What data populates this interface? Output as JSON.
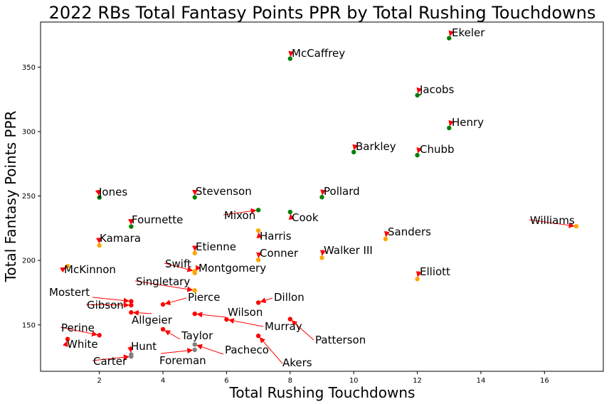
{
  "chart_data": {
    "type": "scatter",
    "title": "2022 RBs Total Fantasy Points PPR by Total Rushing Touchdowns",
    "xlabel": "Total Rushing Touchdowns",
    "ylabel": "Total Fantasy Points PPR",
    "xlim": [
      0.15,
      17.85
    ],
    "ylim": [
      114,
      385
    ],
    "xticks": [
      2,
      4,
      6,
      8,
      10,
      12,
      14,
      16
    ],
    "yticks": [
      150,
      200,
      250,
      300,
      350
    ],
    "grid": false,
    "colors": {
      "green": "#008000",
      "orange": "#ffa500",
      "red": "#ff0000",
      "gray": "#808080",
      "arrow": "#ff0000"
    },
    "points": [
      {
        "name": "Ekeler",
        "x": 13,
        "y": 372.5,
        "color": "green"
      },
      {
        "name": "McCaffrey",
        "x": 8,
        "y": 356.6,
        "color": "green"
      },
      {
        "name": "Jacobs",
        "x": 12,
        "y": 328.2,
        "color": "green"
      },
      {
        "name": "Henry",
        "x": 13,
        "y": 302.8,
        "color": "green"
      },
      {
        "name": "Barkley",
        "x": 10,
        "y": 284.1,
        "color": "green"
      },
      {
        "name": "Chubb",
        "x": 12,
        "y": 281.7,
        "color": "green"
      },
      {
        "name": "Jones",
        "x": 2,
        "y": 248.9,
        "color": "green"
      },
      {
        "name": "Stevenson",
        "x": 5,
        "y": 249.0,
        "color": "green"
      },
      {
        "name": "Pollard",
        "x": 9,
        "y": 249.1,
        "color": "green"
      },
      {
        "name": "Mixon",
        "x": 7,
        "y": 239.1,
        "color": "green"
      },
      {
        "name": "Cook",
        "x": 8,
        "y": 237.6,
        "color": "green"
      },
      {
        "name": "Fournette",
        "x": 3,
        "y": 226.3,
        "color": "green"
      },
      {
        "name": "Williams",
        "x": 17,
        "y": 226.5,
        "color": "orange"
      },
      {
        "name": "Harris",
        "x": 7,
        "y": 223.2,
        "color": "orange"
      },
      {
        "name": "Sanders",
        "x": 11,
        "y": 216.7,
        "color": "orange"
      },
      {
        "name": "Kamara",
        "x": 2,
        "y": 211.7,
        "color": "orange"
      },
      {
        "name": "Etienne",
        "x": 5,
        "y": 205.7,
        "color": "orange"
      },
      {
        "name": "Walker III",
        "x": 9,
        "y": 202.1,
        "color": "orange"
      },
      {
        "name": "Conner",
        "x": 7,
        "y": 200.4,
        "color": "orange"
      },
      {
        "name": "McKinnon",
        "x": 1,
        "y": 195.6,
        "color": "orange"
      },
      {
        "name": "Swift",
        "x": 5,
        "y": 191.6,
        "color": "orange"
      },
      {
        "name": "Montgomery",
        "x": 5,
        "y": 190.3,
        "color": "orange"
      },
      {
        "name": "Elliott",
        "x": 12,
        "y": 185.6,
        "color": "orange"
      },
      {
        "name": "Singletary",
        "x": 5,
        "y": 176.8,
        "color": "orange"
      },
      {
        "name": "Mostert",
        "x": 3,
        "y": 168.3,
        "color": "red"
      },
      {
        "name": "Dillon",
        "x": 7,
        "y": 167.3,
        "color": "red"
      },
      {
        "name": "Pierce",
        "x": 4,
        "y": 165.9,
        "color": "red"
      },
      {
        "name": "Gibson",
        "x": 3,
        "y": 165.3,
        "color": "red"
      },
      {
        "name": "Allgeier",
        "x": 3,
        "y": 159.7,
        "color": "red"
      },
      {
        "name": "Wilson",
        "x": 5,
        "y": 158.6,
        "color": "red"
      },
      {
        "name": "Patterson",
        "x": 8,
        "y": 154.5,
        "color": "red"
      },
      {
        "name": "Murray",
        "x": 6,
        "y": 154.2,
        "color": "red"
      },
      {
        "name": "Taylor",
        "x": 4,
        "y": 146.6,
        "color": "red"
      },
      {
        "name": "Perine",
        "x": 2,
        "y": 142.0,
        "color": "red"
      },
      {
        "name": "Akers",
        "x": 7,
        "y": 141.5,
        "color": "red"
      },
      {
        "name": "White",
        "x": 1,
        "y": 139.0,
        "color": "red"
      },
      {
        "name": "Pacheco",
        "x": 5,
        "y": 134.8,
        "color": "gray"
      },
      {
        "name": "Foreman",
        "x": 5,
        "y": 130.6,
        "color": "gray"
      },
      {
        "name": "Hunt",
        "x": 3,
        "y": 127.0,
        "color": "gray"
      },
      {
        "name": "Carter",
        "x": 3,
        "y": 125.5,
        "color": "gray"
      }
    ]
  }
}
